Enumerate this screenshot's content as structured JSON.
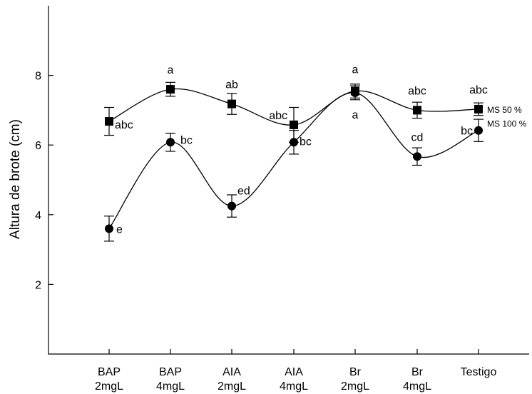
{
  "chart_data": {
    "type": "line",
    "ylabel": "Altura de brote (cm)",
    "xlabel": "",
    "ylim": [
      0,
      10
    ],
    "yticks": [
      2,
      4,
      6,
      8
    ],
    "categories": [
      [
        "BAP",
        "2mgL"
      ],
      [
        "BAP",
        "4mgL"
      ],
      [
        "AIA",
        "2mgL"
      ],
      [
        "AIA",
        "4mgL"
      ],
      [
        "Br",
        "2mgL"
      ],
      [
        "Br",
        "4mgL"
      ],
      [
        "Testigo"
      ]
    ],
    "grid": false,
    "series": [
      {
        "name": "MS 50 %",
        "marker": "square",
        "values": [
          6.68,
          7.6,
          7.18,
          6.58,
          7.55,
          7.0,
          7.03
        ],
        "errors": [
          0.4,
          0.2,
          0.3,
          0.5,
          0.2,
          0.23,
          0.18
        ],
        "letters": [
          "abc",
          "a",
          "ab",
          "abc",
          "a",
          "abc",
          "abc"
        ]
      },
      {
        "name": "MS 100 %",
        "marker": "circle",
        "values": [
          3.6,
          6.08,
          4.25,
          6.08,
          7.5,
          5.67,
          6.42
        ],
        "errors": [
          0.36,
          0.26,
          0.32,
          0.34,
          0.2,
          0.25,
          0.32
        ],
        "letters": [
          "e",
          "bc",
          "ed",
          "bc",
          "a",
          "cd",
          "bc"
        ]
      }
    ]
  }
}
